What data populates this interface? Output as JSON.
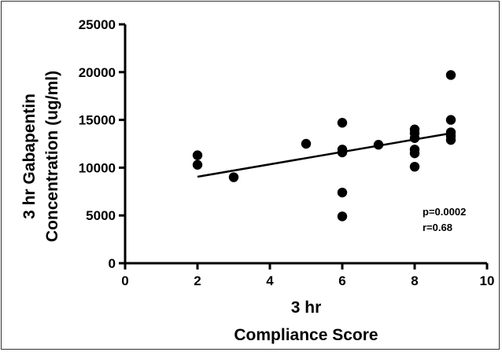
{
  "chart_data": {
    "type": "scatter",
    "title": "",
    "xlabel_lines": [
      "3 hr",
      "Compliance Score"
    ],
    "ylabel_lines": [
      "3 hr Gabapentin",
      "Concentration (ug/ml)"
    ],
    "xlim": [
      0,
      10
    ],
    "ylim": [
      0,
      25000
    ],
    "x_ticks": [
      0,
      2,
      4,
      6,
      8,
      10
    ],
    "y_ticks": [
      0,
      5000,
      10000,
      15000,
      20000,
      25000
    ],
    "x_tick_labels": [
      "0",
      "2",
      "4",
      "6",
      "8",
      "10"
    ],
    "y_tick_labels": [
      "0",
      "5000",
      "10000",
      "15000",
      "20000",
      "25000"
    ],
    "grid": false,
    "points": [
      {
        "x": 2,
        "y": 11300
      },
      {
        "x": 2,
        "y": 10300
      },
      {
        "x": 3,
        "y": 9000
      },
      {
        "x": 5,
        "y": 12500
      },
      {
        "x": 6,
        "y": 14700
      },
      {
        "x": 6,
        "y": 11900
      },
      {
        "x": 6,
        "y": 11600
      },
      {
        "x": 6,
        "y": 7400
      },
      {
        "x": 6,
        "y": 4900
      },
      {
        "x": 7,
        "y": 12400
      },
      {
        "x": 8,
        "y": 14000
      },
      {
        "x": 8,
        "y": 13600
      },
      {
        "x": 8,
        "y": 13100
      },
      {
        "x": 8,
        "y": 11900
      },
      {
        "x": 8,
        "y": 11500
      },
      {
        "x": 8,
        "y": 10100
      },
      {
        "x": 9,
        "y": 19700
      },
      {
        "x": 9,
        "y": 15000
      },
      {
        "x": 9,
        "y": 13700
      },
      {
        "x": 9,
        "y": 13300
      },
      {
        "x": 9,
        "y": 12900
      }
    ],
    "regression_line": {
      "x": [
        2,
        9
      ],
      "y": [
        9050,
        13600
      ]
    },
    "annotations": [
      "p=0.0002",
      "r=0.68"
    ],
    "colors": {
      "points": "#000000",
      "line": "#000000",
      "axes": "#000000"
    }
  }
}
